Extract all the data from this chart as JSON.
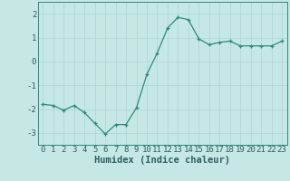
{
  "x": [
    0,
    1,
    2,
    3,
    4,
    5,
    6,
    7,
    8,
    9,
    10,
    11,
    12,
    13,
    14,
    15,
    16,
    17,
    18,
    19,
    20,
    21,
    22,
    23
  ],
  "y": [
    -1.8,
    -1.85,
    -2.05,
    -1.85,
    -2.15,
    -2.6,
    -3.05,
    -2.65,
    -2.65,
    -1.95,
    -0.55,
    0.35,
    1.4,
    1.85,
    1.75,
    0.95,
    0.7,
    0.8,
    0.85,
    0.65,
    0.65,
    0.65,
    0.65,
    0.85
  ],
  "line_color": "#2d8b78",
  "marker": "+",
  "bg_color": "#c5e8e5",
  "grid_color": "#b0d8d5",
  "axis_color": "#2d8b78",
  "text_color": "#2d6060",
  "xlabel": "Humidex (Indice chaleur)",
  "ylim": [
    -3.5,
    2.5
  ],
  "xlim": [
    -0.5,
    23.5
  ],
  "yticks": [
    -3,
    -2,
    -1,
    0,
    1,
    2
  ],
  "xticks": [
    0,
    1,
    2,
    3,
    4,
    5,
    6,
    7,
    8,
    9,
    10,
    11,
    12,
    13,
    14,
    15,
    16,
    17,
    18,
    19,
    20,
    21,
    22,
    23
  ],
  "tick_fontsize": 6.5,
  "label_fontsize": 7.5
}
